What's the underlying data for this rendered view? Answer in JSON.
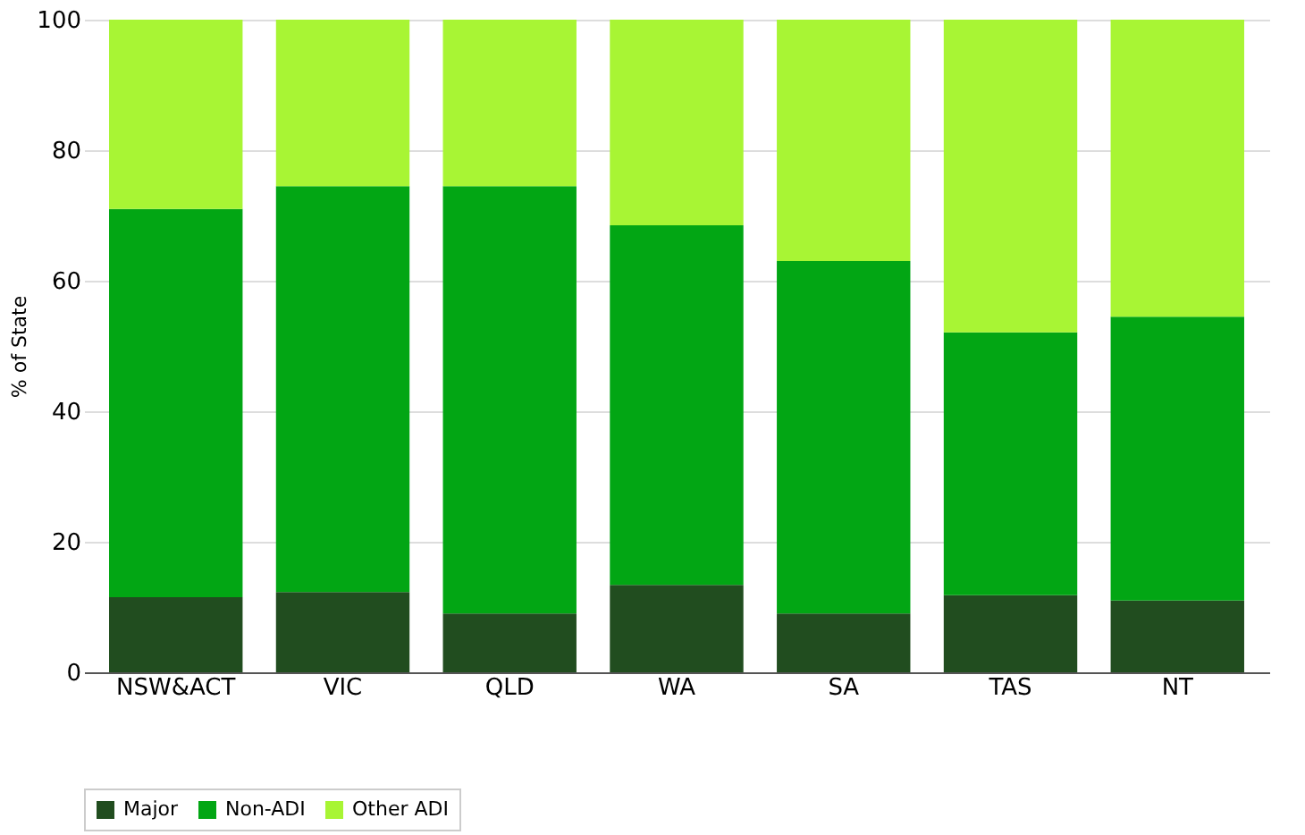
{
  "chart_data": {
    "type": "bar",
    "stacked": true,
    "ylabel": "% of State",
    "categories": [
      "NSW&ACT",
      "VIC",
      "QLD",
      "WA",
      "SA",
      "TAS",
      "NT"
    ],
    "series": [
      {
        "name": "Major",
        "color": "#214d1f",
        "values": [
          11.5,
          12.3,
          9.0,
          13.4,
          9.0,
          11.8,
          11.0
        ]
      },
      {
        "name": "Non-ADI",
        "color": "#02a614",
        "values": [
          59.5,
          62.2,
          65.5,
          55.1,
          54.0,
          40.3,
          43.5
        ]
      },
      {
        "name": "Other ADI",
        "color": "#a8f534",
        "values": [
          29.0,
          25.5,
          25.5,
          31.5,
          37.0,
          47.9,
          45.5
        ]
      }
    ],
    "ylim": [
      0,
      100
    ],
    "yticks": [
      0,
      20,
      40,
      60,
      80,
      100
    ],
    "grid": "y",
    "legend": "bottom"
  }
}
